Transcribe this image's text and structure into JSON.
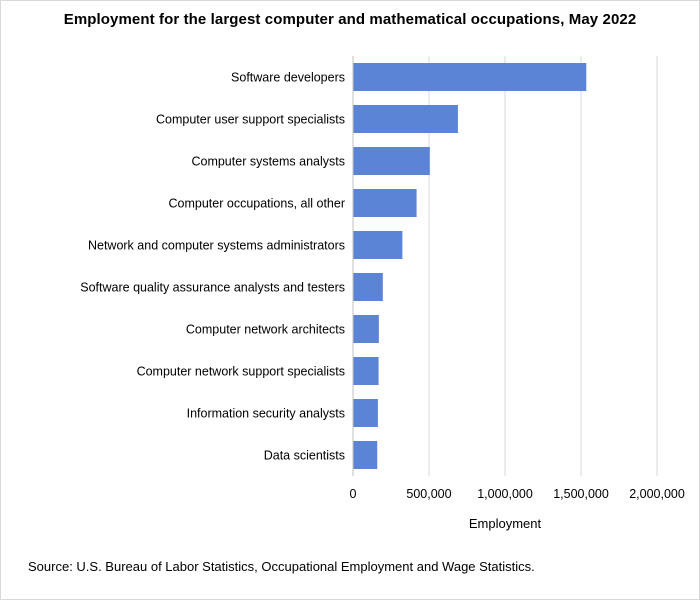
{
  "chart_data": {
    "type": "bar",
    "orientation": "horizontal",
    "title": "Employment for the largest computer and mathematical occupations, May 2022",
    "xlabel": "Employment",
    "ylabel": "",
    "categories": [
      "Software developers",
      "Computer user support specialists",
      "Computer systems analysts",
      "Computer occupations, all other",
      "Network and computer systems administrators",
      "Software quality assurance analysts and testers",
      "Computer network architects",
      "Computer network support specialists",
      "Information security analysts",
      "Data scientists"
    ],
    "values": [
      1534790,
      690320,
      505360,
      418250,
      324890,
      196150,
      170110,
      168220,
      163690,
      159420
    ],
    "xlim": [
      0,
      2000000
    ],
    "xticks": [
      0,
      500000,
      1000000,
      1500000,
      2000000
    ],
    "xtick_labels": [
      "0",
      "500,000",
      "1,000,000",
      "1,500,000",
      "2,000,000"
    ],
    "grid": true,
    "legend": "none",
    "bar_color": "#5b84d6",
    "gridline_color": "#d9d9d9"
  },
  "footer": {
    "source": "Source: U.S. Bureau of Labor Statistics, Occupational Employment and Wage Statistics."
  }
}
